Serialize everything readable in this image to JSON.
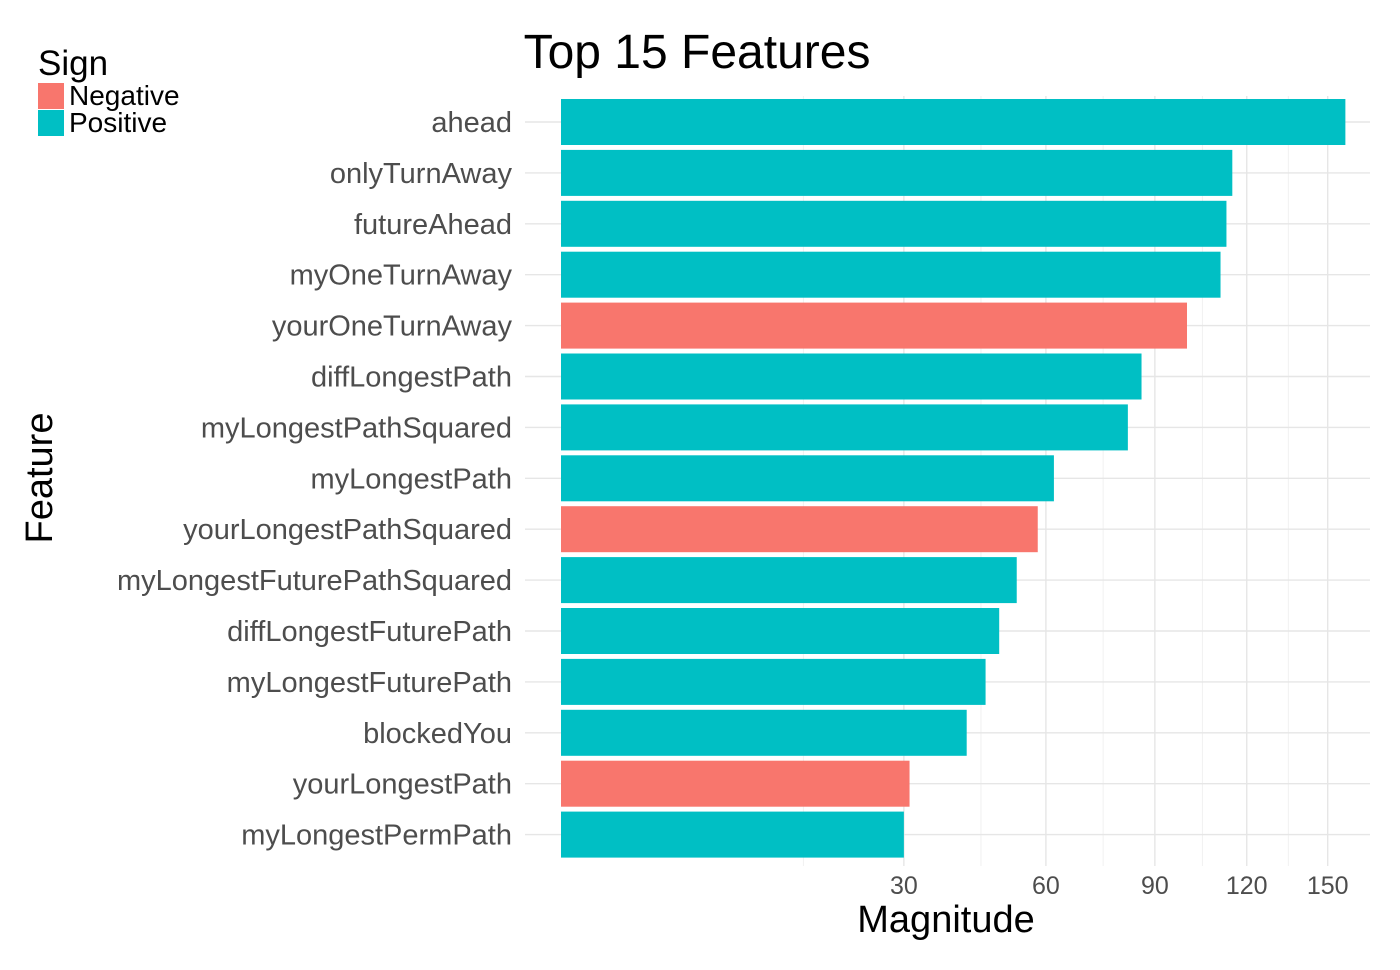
{
  "chart_data": {
    "type": "bar",
    "orientation": "horizontal",
    "title": "Top 15 Features",
    "xlabel": "Magnitude",
    "ylabel": "Feature",
    "x_scale": "sqrt",
    "xlim": [
      0,
      160
    ],
    "x_ticks": [
      30,
      60,
      90,
      120,
      150
    ],
    "x_tick_labels": [
      "30",
      "60",
      "90",
      "120",
      "150"
    ],
    "grid": true,
    "legend": {
      "title": "Sign",
      "placement": "top-left",
      "entries": [
        {
          "label": "Negative",
          "color": "#F8766D"
        },
        {
          "label": "Positive",
          "color": "#00BFC4"
        }
      ]
    },
    "categories": [
      "ahead",
      "onlyTurnAway",
      "futureAhead",
      "myOneTurnAway",
      "yourOneTurnAway",
      "diffLongestPath",
      "myLongestPathSquared",
      "myLongestPath",
      "yourLongestPathSquared",
      "myLongestFuturePathSquared",
      "diffLongestFuturePath",
      "myLongestFuturePath",
      "blockedYou",
      "yourLongestPath",
      "myLongestPermPath"
    ],
    "values": [
      157,
      115,
      113,
      111,
      100,
      86,
      82,
      62,
      58,
      53,
      49,
      46,
      42,
      31,
      30
    ],
    "signs": [
      "Positive",
      "Positive",
      "Positive",
      "Positive",
      "Negative",
      "Positive",
      "Positive",
      "Positive",
      "Negative",
      "Positive",
      "Positive",
      "Positive",
      "Positive",
      "Negative",
      "Positive"
    ]
  }
}
